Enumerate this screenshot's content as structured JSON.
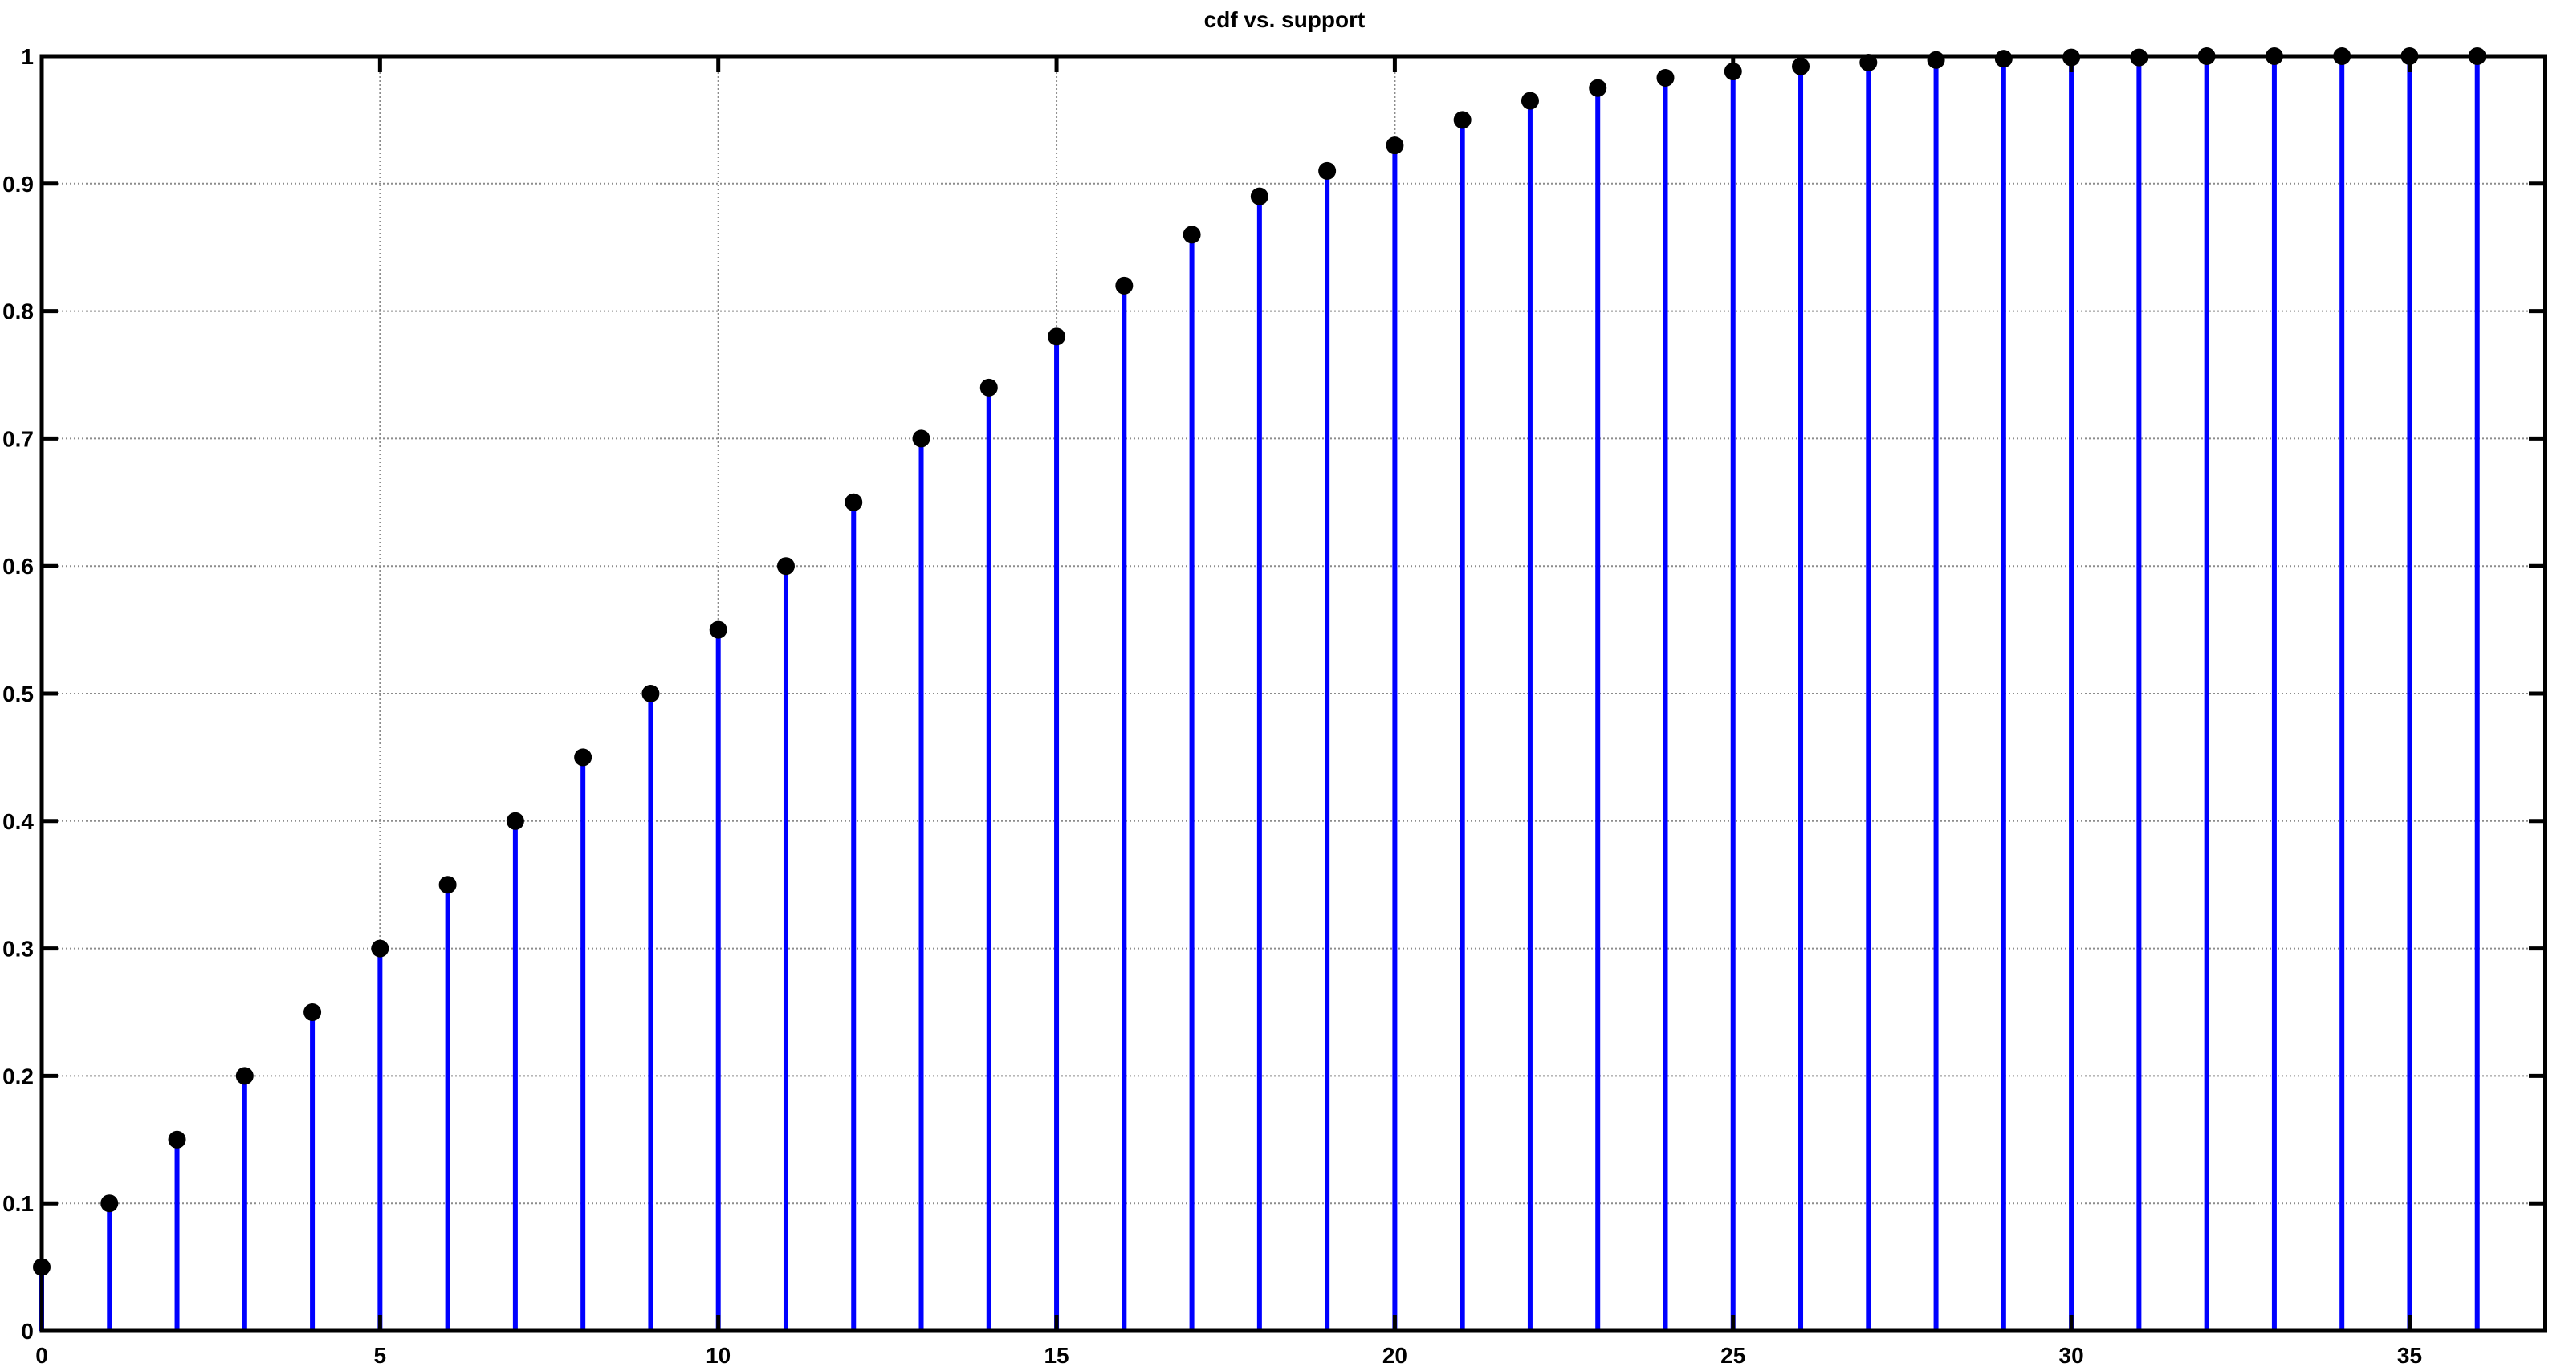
{
  "chart_data": {
    "type": "stem",
    "title": "cdf vs. support",
    "xlabel": "",
    "ylabel": "",
    "xlim": [
      0,
      37
    ],
    "ylim": [
      0,
      1
    ],
    "xticks": [
      0,
      5,
      10,
      15,
      20,
      25,
      30,
      35
    ],
    "yticks": [
      0,
      0.1,
      0.2,
      0.3,
      0.4,
      0.5,
      0.6,
      0.7,
      0.8,
      0.9,
      1
    ],
    "grid": true,
    "legend": "none",
    "series": [
      {
        "x": [
          0,
          1,
          2,
          3,
          4,
          5,
          6,
          7,
          8,
          9,
          10,
          11,
          12,
          13,
          14,
          15,
          16,
          17,
          18,
          19,
          20,
          21,
          22,
          23,
          24,
          25,
          26,
          27,
          28,
          29,
          30,
          31,
          32,
          33,
          34,
          35,
          36
        ],
        "values": [
          0.05,
          0.1,
          0.15,
          0.2,
          0.25,
          0.3,
          0.35,
          0.4,
          0.45,
          0.5,
          0.55,
          0.6,
          0.65,
          0.7,
          0.74,
          0.78,
          0.82,
          0.86,
          0.89,
          0.91,
          0.93,
          0.95,
          0.965,
          0.975,
          0.983,
          0.988,
          0.992,
          0.995,
          0.997,
          0.998,
          0.999,
          0.999,
          1.0,
          1.0,
          1.0,
          1.0,
          1.0
        ]
      }
    ],
    "colors": {
      "stem": "#0000ff",
      "marker": "#000000",
      "grid": "#8c8c8c",
      "axes": "#000000"
    }
  }
}
